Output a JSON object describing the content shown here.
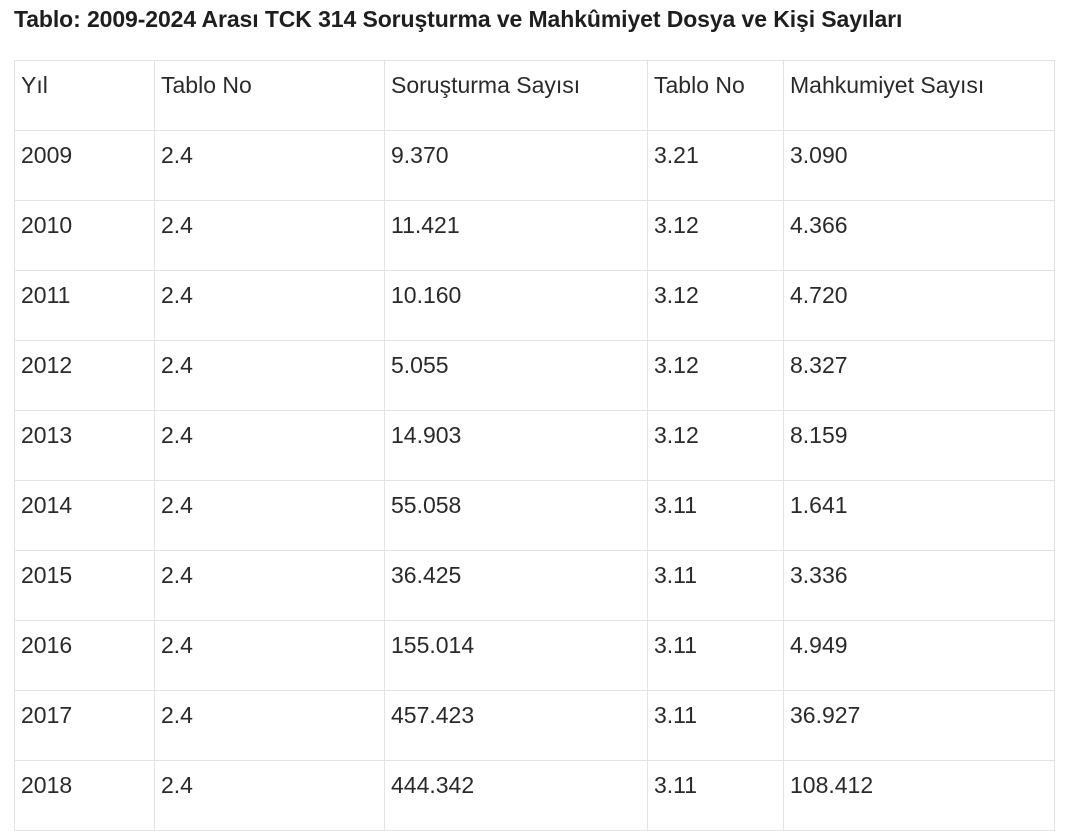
{
  "title": "Tablo: 2009-2024 Arası TCK 314 Soruşturma ve Mahkûmiyet Dosya ve Kişi Sayıları",
  "table": {
    "headers": [
      "Yıl",
      "Tablo No",
      "Soruşturma Sayısı",
      "Tablo No",
      "Mahkumiyet Sayısı"
    ],
    "rows": [
      [
        "2009",
        "2.4",
        "9.370",
        "3.21",
        "3.090"
      ],
      [
        "2010",
        "2.4",
        "11.421",
        "3.12",
        "4.366"
      ],
      [
        "2011",
        "2.4",
        "10.160",
        "3.12",
        "4.720"
      ],
      [
        "2012",
        "2.4",
        "5.055",
        "3.12",
        "8.327"
      ],
      [
        "2013",
        "2.4",
        "14.903",
        "3.12",
        "8.159"
      ],
      [
        "2014",
        "2.4",
        "55.058",
        "3.11",
        "1.641"
      ],
      [
        "2015",
        "2.4",
        "36.425",
        "3.11",
        "3.336"
      ],
      [
        "2016",
        "2.4",
        "155.014",
        "3.11",
        "4.949"
      ],
      [
        "2017",
        "2.4",
        "457.423",
        "3.11",
        "36.927"
      ],
      [
        "2018",
        "2.4",
        "444.342",
        "3.11",
        "108.412"
      ]
    ]
  }
}
